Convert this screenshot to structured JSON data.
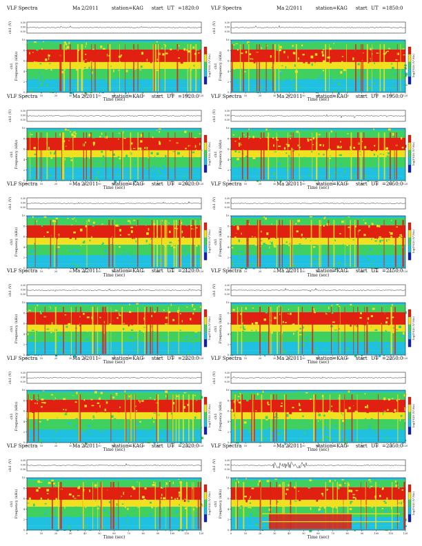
{
  "common": {
    "title_left": "VLF Spectra",
    "station": "station=KAG",
    "start_label": "start",
    "ut_label": "UT",
    "ylabel_wave": "ch1 (V)",
    "ylabel_spec_a": "ch1",
    "ylabel_spec_b": "Frequency (kHz)",
    "xlabel": "Time (sec)",
    "cbar_label": "log(PSD) (V²/Hz)"
  },
  "panels": [
    {
      "date_a": "Ma",
      "date_b": "2/2011",
      "ut": "=1820:0"
    },
    {
      "date_a": "Ma",
      "date_b": "2/2011",
      "ut": "=1850:0"
    },
    {
      "date_a": "Ma",
      "date_b": "2/2011",
      "ut": "=1920:0"
    },
    {
      "date_a": "Ma",
      "date_b": "2/2011",
      "ut": "=1950:0"
    },
    {
      "date_a": "Ma",
      "date_b": "2/2011",
      "ut": "=2020:0"
    },
    {
      "date_a": "Ma",
      "date_b": "2/2011",
      "ut": "=2050:0"
    },
    {
      "date_a": "Ma",
      "date_b": "2/2011",
      "ut": "=2120:0"
    },
    {
      "date_a": "Ma",
      "date_b": "2/2011",
      "ut": "=2150:0"
    },
    {
      "date_a": "Ma",
      "date_b": "2/2011",
      "ut": "=2220:0"
    },
    {
      "date_a": "Ma",
      "date_b": "2/2011",
      "ut": "=2250:0"
    },
    {
      "date_a": "Ma",
      "date_b": "2/2011",
      "ut": "=2320:0"
    },
    {
      "date_a": "Ma",
      "date_b": "2/2011",
      "ut": "=2350:0"
    }
  ],
  "chart_data": {
    "type": "heatmap",
    "colors": {
      "high": "#e02010",
      "mid_high": "#f0e020",
      "mid": "#40d060",
      "low": "#20c0e0",
      "min": "#1020b0",
      "trace": "#333333"
    },
    "x_ticks": [
      0,
      10,
      20,
      30,
      40,
      50,
      60,
      70,
      80,
      90,
      100,
      110,
      120
    ],
    "xlim": [
      0,
      120
    ],
    "y_ticks": [
      0,
      2,
      4,
      6,
      8,
      10
    ],
    "ylim": [
      0,
      10
    ],
    "wave_ticks": [
      "0.30",
      "0.00",
      "-0.30"
    ]
  }
}
